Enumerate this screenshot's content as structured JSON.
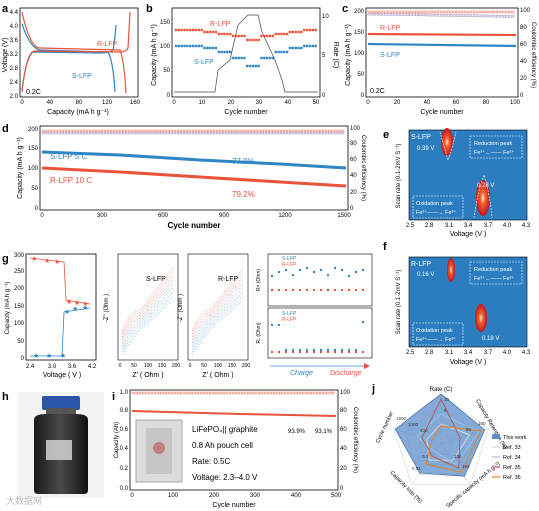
{
  "colors": {
    "red": "#e8533a",
    "blue": "#2f86c4",
    "purple": "#8a6ea8",
    "panel_bg": "#2b7dbf",
    "hot": "#e0241b"
  },
  "panels": {
    "a": {
      "letter": "a",
      "ylabel": "Voltage (V)",
      "xlabel": "Capacity (mA h g⁻¹)",
      "note": "0.2C",
      "label_r": "R-LFP",
      "label_s": "S-LFP",
      "xticks": [
        "0",
        "40",
        "80",
        "120",
        "160"
      ],
      "yticks": [
        "2.0",
        "2.4",
        "2.8",
        "3.2",
        "3.6",
        "4.0",
        "4.4"
      ]
    },
    "b": {
      "letter": "b",
      "ylabel": "Capacity (mA h g⁻¹)",
      "ylabel2": "Rate (C)",
      "xlabel": "Cycle number",
      "label_r": "R-LFP",
      "label_s": "S-LFP",
      "xticks": [
        "0",
        "10",
        "20",
        "30",
        "40",
        "50"
      ],
      "yticks": [
        "0",
        "50",
        "100",
        "150"
      ],
      "y2ticks": [
        "0",
        "5",
        "10"
      ]
    },
    "c": {
      "letter": "c",
      "ylabel": "Capacity (mA h g⁻¹)",
      "ylabel2": "Coulombic efficiency (%)",
      "xlabel": "Cycle number",
      "note": "0.2C",
      "label_r": "R-LFP",
      "label_s": "S-LFP",
      "xticks": [
        "0",
        "20",
        "40",
        "60",
        "80",
        "100"
      ],
      "yticks": [
        "0",
        "50",
        "100",
        "150",
        "200"
      ],
      "y2ticks": [
        "0",
        "20",
        "40",
        "60",
        "80",
        "100"
      ]
    },
    "d": {
      "letter": "d",
      "ylabel": "Capacity (mA h g⁻¹)",
      "ylabel2": "Coulombic efficiency (%)",
      "xlabel": "Cycle number",
      "label_s": "S-LFP  5 C",
      "label_r": "R-LFP  10 C",
      "pct_s": "77.9%",
      "pct_r": "79.2%",
      "xticks": [
        "0",
        "300",
        "600",
        "900",
        "1200",
        "1500"
      ],
      "yticks": [
        "0",
        "50",
        "100",
        "150",
        "200"
      ],
      "y2ticks": [
        "0",
        "20",
        "40",
        "60",
        "80",
        "100"
      ]
    },
    "e": {
      "letter": "e",
      "ylabel": "Scan rate (0.1-2mV S⁻¹)",
      "xlabel": "Voltage (V )",
      "title": "S-LFP",
      "v1": "0.39 V",
      "v2": "0.28 V",
      "box1": "Reduction peak",
      "box1b": "Fe³⁺←—— Fe²⁺",
      "box2": "Oxidation peak",
      "box2b": "Fe²⁺——→ Fe³⁺",
      "xticks": [
        "2.5",
        "2.8",
        "3.1",
        "3.4",
        "3.7",
        "4.0",
        "4.3"
      ]
    },
    "f": {
      "letter": "f",
      "ylabel": "Scan rate (0.1-2mV S⁻¹)",
      "xlabel": "Voltage (V )",
      "title": "R-LFP",
      "v1": "0.16 V",
      "v2": "0.18 V",
      "box1": "Reduction peak",
      "box1b": "Fe³⁺←—— Fe²⁺",
      "box2": "Oxidation peak",
      "box2b": "Fe²⁺——→ Fe³⁺",
      "xticks": [
        "2.5",
        "2.8",
        "3.1",
        "3.4",
        "3.7",
        "4.0",
        "4.3"
      ]
    },
    "g": {
      "letter": "g",
      "ylabel": "Capacity (mA h g⁻¹)",
      "xlabel": "Voltage ( V )",
      "xticks": [
        "2.4",
        "3.0",
        "3.6",
        "4.2"
      ],
      "yticks": [
        "0",
        "50",
        "100",
        "150",
        "200",
        "250",
        "300"
      ],
      "eis_s": "S-LFP",
      "eis_r": "R-LFP",
      "zre": "Z' ( Ohm )",
      "zim": "-Z'' (Ohm )",
      "zticks": [
        "0",
        "50",
        "100",
        "150",
        "200"
      ],
      "zticks2": [
        "0",
        "50",
        "100",
        "150",
        "200"
      ],
      "rct": "Rᶜᵗ (Ohm)",
      "rs": "Rₛ (Ohm)",
      "leg_s": "S-LFP",
      "leg_r": "R-LFP",
      "charge": "Charge",
      "discharge": "Discharge",
      "rticks": [
        "0",
        "10",
        "20"
      ],
      "sticks": [
        "0",
        "50",
        "100",
        "150",
        "200"
      ]
    },
    "h": {
      "letter": "h"
    },
    "i": {
      "letter": "i",
      "ylabel": "Capacity (Ah)",
      "ylabel2": "Coulombic efficiency (%)",
      "xlabel": "Cycle number",
      "title": "LiFePO₄|| graphite",
      "line1": "0.8 Ah pouch cell",
      "line2": "Rate: 0.5C",
      "line3": "Voltage: 2.3–4.0 V",
      "pct1": "93.9%",
      "pct2": "93.1%",
      "xticks": [
        "0",
        "100",
        "200",
        "300",
        "400",
        "500"
      ],
      "yticks": [
        "0.0",
        "0.2",
        "0.4",
        "0.6",
        "0.8",
        "1.0"
      ],
      "y2ticks": [
        "0",
        "20",
        "40",
        "60",
        "80",
        "100"
      ]
    },
    "j": {
      "letter": "j",
      "axes": [
        "Rate (C)",
        "Capacity Retention (%)",
        "Specific capacity (mA h g⁻¹)",
        "Capacity loss (%)",
        "Cycle number"
      ],
      "ticks_rate": [
        "5",
        "10"
      ],
      "ticks_ret": [
        "80",
        "100"
      ],
      "ticks_cap": [
        "135",
        "150"
      ],
      "ticks_loss": [
        "0.1",
        "0.01"
      ],
      "ticks_cyc": [
        "400",
        "1000",
        "1500"
      ],
      "legend": [
        "This work",
        "Ref. 33",
        "Ref. 34",
        "Ref. 35",
        "Ref. 36"
      ],
      "legend_colors": [
        "#5b8fc9",
        "#d9d9d9",
        "#9cc3e6",
        "#c0504d",
        "#e67e22"
      ]
    }
  },
  "watermark": "大数据网"
}
